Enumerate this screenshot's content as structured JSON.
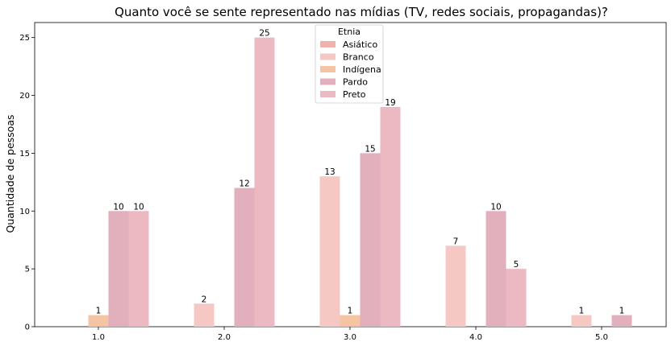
{
  "chart_data": {
    "type": "bar",
    "title": "Quanto você se sente representado nas mídias (TV, redes sociais, propagandas)?",
    "xlabel": "",
    "ylabel": "Quantidade de pessoas",
    "categories": [
      "1.0",
      "2.0",
      "3.0",
      "4.0",
      "5.0"
    ],
    "yticks": [
      "0",
      "5",
      "10",
      "15",
      "20",
      "25"
    ],
    "ylim": [
      0,
      26.3
    ],
    "grid": false,
    "legend": {
      "title": "Etnia",
      "placement": "top-center"
    },
    "series": [
      {
        "name": "Asiático",
        "color": "#f2b2ac",
        "values": [
          0,
          0,
          0,
          0,
          0
        ]
      },
      {
        "name": "Branco",
        "color": "#f6c8c3",
        "values": [
          0,
          2,
          13,
          7,
          1
        ]
      },
      {
        "name": "Indígena",
        "color": "#f5c5a3",
        "values": [
          1,
          0,
          1,
          0,
          0
        ]
      },
      {
        "name": "Pardo",
        "color": "#e2b0bc",
        "values": [
          10,
          12,
          15,
          10,
          1
        ]
      },
      {
        "name": "Preto",
        "color": "#ecb8c1",
        "values": [
          10,
          25,
          19,
          5,
          0
        ]
      }
    ]
  }
}
